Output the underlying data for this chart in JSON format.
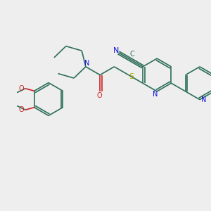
{
  "bg_color": "#eeeeee",
  "bond_color": "#2d6e5a",
  "n_color": "#1010dd",
  "o_color": "#cc2222",
  "s_color": "#aaaa00",
  "figsize": [
    3.0,
    3.0
  ],
  "dpi": 100,
  "xlim": [
    0,
    10
  ],
  "ylim": [
    0,
    10
  ]
}
